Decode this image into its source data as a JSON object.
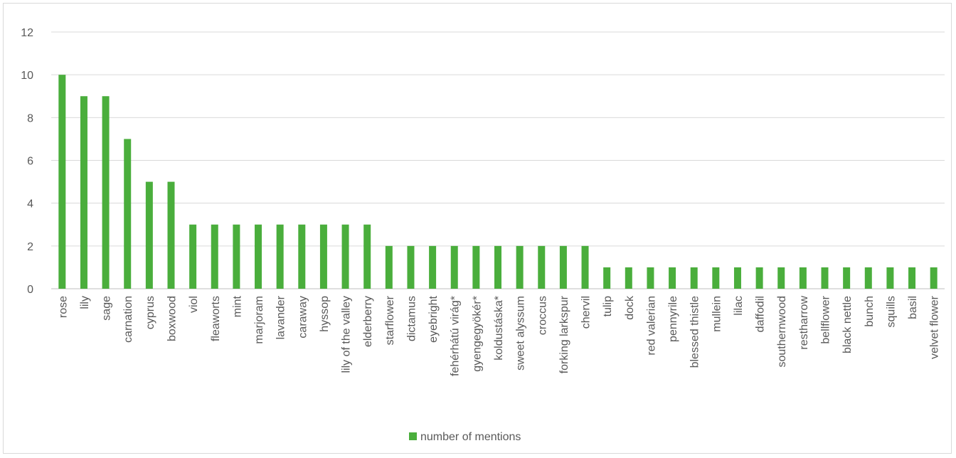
{
  "chart_data": {
    "type": "bar",
    "categories": [
      "rose",
      "lily",
      "sage",
      "carnation",
      "cyprus",
      "boxwood",
      "viol",
      "fleaworts",
      "mint",
      "marjoram",
      "lavander",
      "caraway",
      "hyssop",
      "lily of the valley",
      "elderberry",
      "starflower",
      "dictamus",
      "eyebright",
      "fehérhátú virág*",
      "gyengegyökér*",
      "koldustáska*",
      "sweet alyssum",
      "croccus",
      "forking larkspur",
      "chervil",
      "tulip",
      "dock",
      "red valerian",
      "pennyrile",
      "blessed thistle",
      "mullein",
      "lilac",
      "daffodil",
      "southernwood",
      "restharrow",
      "bellflower",
      "black nettle",
      "bunch",
      "squills",
      "basil",
      "velvet flower"
    ],
    "series": [
      {
        "name": "number of mentions",
        "color": "#4aae3c",
        "values": [
          10,
          9,
          9,
          7,
          5,
          5,
          3,
          3,
          3,
          3,
          3,
          3,
          3,
          3,
          3,
          2,
          2,
          2,
          2,
          2,
          2,
          2,
          2,
          2,
          2,
          1,
          1,
          1,
          1,
          1,
          1,
          1,
          1,
          1,
          1,
          1,
          1,
          1,
          1,
          1,
          1
        ]
      }
    ],
    "yticks": [
      0,
      2,
      4,
      6,
      8,
      10,
      12
    ],
    "ylim": [
      0,
      12
    ],
    "grid": true,
    "legend_position": "bottom"
  }
}
